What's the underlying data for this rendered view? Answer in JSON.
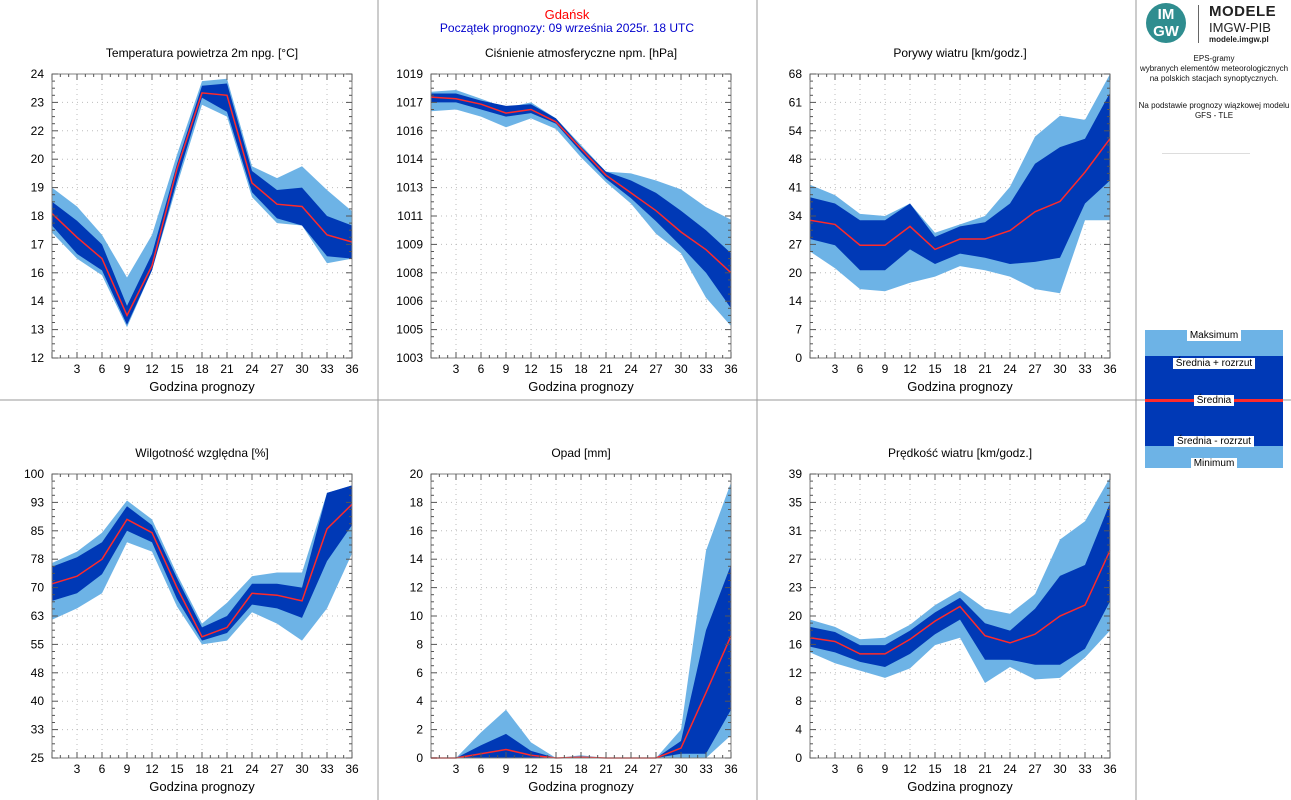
{
  "header": {
    "station": "Gdańsk",
    "forecast_start": "Początek prognozy: 09 września 2025r. 18 UTC"
  },
  "branding": {
    "logo_top": "IM",
    "logo_bottom": "GW",
    "title": "MODELE",
    "subtitle": "IMGW-PIB",
    "url": "modele.imgw.pl"
  },
  "description": {
    "lines": [
      "EPS-gramy",
      "wybranych elementów meteorologicznych",
      "na polskich stacjach  synoptycznych."
    ],
    "basis_lines": [
      "Na podstawie prognozy wiązkowej modelu",
      "GFS - TLE"
    ]
  },
  "legend": {
    "max": "Maksimum",
    "mean_plus": "Średnia + rozrzut",
    "mean": "Średnia",
    "mean_minus": "Średnia - rozrzut",
    "min": "Minimum"
  },
  "colors": {
    "band_outer": "#6db3e6",
    "band_inner": "#0039b6",
    "mean_line": "#ff2a2a",
    "station_title": "#ff0000",
    "forecast_title": "#0000cc",
    "grid": "#bdbdbd"
  },
  "chart_data": [
    {
      "type": "area",
      "title": "Temperatura powietrza 2m npg. [°C]",
      "xlabel": "Godzina prognozy",
      "x": [
        0,
        3,
        6,
        9,
        12,
        15,
        18,
        21,
        24,
        27,
        30,
        33,
        36
      ],
      "xticks": [
        "3",
        "6",
        "9",
        "12",
        "15",
        "18",
        "21",
        "24",
        "27",
        "30",
        "33",
        "36"
      ],
      "yticks": [
        "12",
        "13",
        "14",
        "16",
        "17",
        "18",
        "19",
        "20",
        "22",
        "23",
        "24"
      ],
      "ylim": [
        12,
        24
      ],
      "max": [
        19.2,
        18.4,
        17.2,
        15.4,
        17.2,
        20.6,
        23.7,
        23.8,
        20.1,
        19.6,
        20.1,
        19.1,
        18.2
      ],
      "mean_plus": [
        18.6,
        17.8,
        16.8,
        14.2,
        16.4,
        20.2,
        23.5,
        23.6,
        19.9,
        19.1,
        19.2,
        18.0,
        17.6
      ],
      "mean": [
        18.1,
        17.1,
        16.2,
        13.8,
        15.9,
        20.0,
        23.2,
        23.1,
        19.4,
        18.5,
        18.4,
        17.2,
        16.9
      ],
      "mean_minus": [
        17.6,
        16.4,
        15.7,
        13.4,
        15.7,
        19.5,
        23.0,
        22.4,
        19.0,
        17.9,
        17.6,
        16.3,
        16.2
      ],
      "min": [
        17.3,
        16.2,
        15.5,
        13.3,
        15.7,
        19.3,
        22.7,
        22.2,
        18.8,
        17.7,
        17.6,
        16.0,
        16.2
      ]
    },
    {
      "type": "area",
      "title": "Ciśnienie atmosferyczne npm. [hPa]",
      "xlabel": "Godzina prognozy",
      "x": [
        0,
        3,
        6,
        9,
        12,
        15,
        18,
        21,
        24,
        27,
        30,
        33,
        36
      ],
      "xticks": [
        "3",
        "6",
        "9",
        "12",
        "15",
        "18",
        "21",
        "24",
        "27",
        "30",
        "33",
        "36"
      ],
      "yticks": [
        "1003",
        "1005",
        "1006",
        "1008",
        "1009",
        "1011",
        "1013",
        "1014",
        "1016",
        "1017",
        "1019"
      ],
      "ylim": [
        1003,
        1019
      ],
      "max": [
        1018.0,
        1018.1,
        1017.6,
        1017.1,
        1017.4,
        1016.5,
        1015.0,
        1013.5,
        1013.4,
        1013.0,
        1012.5,
        1011.5,
        1010.8
      ],
      "mean_plus": [
        1017.9,
        1017.9,
        1017.5,
        1017.2,
        1017.3,
        1016.5,
        1014.9,
        1013.5,
        1013.0,
        1012.3,
        1011.3,
        1010.2,
        1008.9
      ],
      "mean": [
        1017.7,
        1017.6,
        1017.3,
        1016.8,
        1017.0,
        1016.3,
        1014.8,
        1013.3,
        1012.3,
        1011.3,
        1010.1,
        1009.1,
        1007.8
      ],
      "mean_minus": [
        1017.4,
        1017.4,
        1017.0,
        1016.6,
        1016.8,
        1016.2,
        1014.6,
        1013.1,
        1012.0,
        1010.7,
        1009.3,
        1007.8,
        1005.8
      ],
      "min": [
        1016.9,
        1017.0,
        1016.6,
        1016.0,
        1016.5,
        1015.9,
        1014.3,
        1012.9,
        1011.7,
        1010.0,
        1008.9,
        1006.4,
        1004.8
      ]
    },
    {
      "type": "area",
      "title": "Porywy wiatru [km/godz.]",
      "xlabel": "Godzina prognozy",
      "x": [
        0,
        3,
        6,
        9,
        12,
        15,
        18,
        21,
        24,
        27,
        30,
        33,
        36
      ],
      "xticks": [
        "3",
        "6",
        "9",
        "12",
        "15",
        "18",
        "21",
        "24",
        "27",
        "30",
        "33",
        "36"
      ],
      "yticks": [
        "0",
        "7",
        "14",
        "20",
        "27",
        "34",
        "41",
        "48",
        "54",
        "61",
        "68"
      ],
      "ylim": [
        0,
        68
      ],
      "max": [
        41.5,
        39.0,
        34.5,
        34.0,
        37.0,
        30.0,
        32.0,
        34.0,
        41.0,
        53.0,
        58.0,
        57.0,
        68.0
      ],
      "mean_plus": [
        38.5,
        37.0,
        33.0,
        33.0,
        37.0,
        29.0,
        31.5,
        32.5,
        37.0,
        46.5,
        50.5,
        52.5,
        63.5
      ],
      "mean": [
        33.0,
        32.0,
        27.0,
        27.0,
        31.5,
        26.0,
        28.5,
        28.5,
        30.5,
        35.0,
        37.5,
        44.5,
        52.5
      ],
      "mean_minus": [
        28.5,
        27.0,
        21.0,
        21.0,
        26.0,
        22.5,
        25.0,
        24.0,
        22.5,
        23.0,
        24.0,
        37.0,
        42.5
      ],
      "min": [
        25.5,
        21.5,
        16.5,
        16.0,
        18.0,
        19.5,
        22.0,
        21.0,
        19.5,
        16.5,
        15.5,
        33.0,
        33.0
      ]
    },
    {
      "type": "area",
      "title": "Wilgotność względna [%]",
      "xlabel": "Godzina prognozy",
      "x": [
        0,
        3,
        6,
        9,
        12,
        15,
        18,
        21,
        24,
        27,
        30,
        33,
        36
      ],
      "xticks": [
        "3",
        "6",
        "9",
        "12",
        "15",
        "18",
        "21",
        "24",
        "27",
        "30",
        "33",
        "36"
      ],
      "yticks": [
        "25",
        "33",
        "40",
        "48",
        "55",
        "63",
        "70",
        "78",
        "85",
        "93",
        "100"
      ],
      "ylim": [
        25,
        100
      ],
      "max": [
        76.5,
        79.5,
        84.5,
        93.0,
        88.0,
        73.5,
        60.5,
        66.0,
        73.0,
        74.0,
        74.0,
        95.0,
        97.0
      ],
      "mean_plus": [
        75.5,
        78.0,
        82.0,
        91.5,
        86.5,
        72.5,
        59.5,
        62.5,
        71.0,
        71.0,
        70.0,
        95.0,
        97.0
      ],
      "mean": [
        71.0,
        73.0,
        77.5,
        88.0,
        84.5,
        70.0,
        57.0,
        59.5,
        68.5,
        68.0,
        66.5,
        85.5,
        92.0
      ],
      "mean_minus": [
        66.5,
        68.5,
        73.5,
        85.0,
        82.0,
        67.0,
        56.0,
        58.0,
        65.5,
        64.5,
        62.0,
        77.0,
        86.5
      ],
      "min": [
        61.5,
        64.5,
        68.5,
        82.0,
        79.5,
        65.0,
        55.0,
        56.0,
        63.5,
        60.5,
        56.0,
        64.5,
        79.0
      ]
    },
    {
      "type": "area",
      "title": "Opad [mm]",
      "xlabel": "Godzina prognozy",
      "x": [
        0,
        3,
        6,
        9,
        12,
        15,
        18,
        21,
        24,
        27,
        30,
        33,
        36
      ],
      "xticks": [
        "3",
        "6",
        "9",
        "12",
        "15",
        "18",
        "21",
        "24",
        "27",
        "30",
        "33",
        "36"
      ],
      "yticks": [
        "0",
        "2",
        "4",
        "6",
        "8",
        "10",
        "12",
        "14",
        "16",
        "18",
        "20"
      ],
      "ylim": [
        0,
        20
      ],
      "max": [
        0,
        0,
        1.8,
        3.4,
        1.1,
        0,
        0.2,
        0,
        0,
        0,
        2.0,
        14.6,
        19.4
      ],
      "mean_plus": [
        0,
        0,
        0.9,
        1.7,
        0.5,
        0,
        0.1,
        0,
        0,
        0,
        1.2,
        9.0,
        13.6
      ],
      "mean": [
        0,
        0,
        0.3,
        0.6,
        0.2,
        0,
        0.05,
        0,
        0,
        0,
        0.7,
        4.6,
        8.6
      ],
      "mean_minus": [
        0,
        0,
        0,
        0,
        0,
        0,
        0,
        0,
        0,
        0,
        0.3,
        0.3,
        3.4
      ],
      "min": [
        0,
        0,
        0,
        0,
        0,
        0,
        0,
        0,
        0,
        0,
        0,
        0,
        1.6
      ]
    },
    {
      "type": "area",
      "title": "Prędkość wiatru [km/godz.]",
      "xlabel": "Godzina prognozy",
      "x": [
        0,
        3,
        6,
        9,
        12,
        15,
        18,
        21,
        24,
        27,
        30,
        33,
        36
      ],
      "xticks": [
        "3",
        "6",
        "9",
        "12",
        "15",
        "18",
        "21",
        "24",
        "27",
        "30",
        "33",
        "36"
      ],
      "yticks": [
        "0",
        "4",
        "8",
        "12",
        "16",
        "20",
        "23",
        "27",
        "31",
        "35",
        "39"
      ],
      "ylim": [
        0,
        39
      ],
      "max": [
        19.0,
        18.0,
        16.3,
        16.5,
        18.3,
        21.0,
        23.0,
        20.5,
        19.8,
        22.5,
        30.0,
        32.5,
        38.5
      ],
      "mean_plus": [
        18.0,
        17.3,
        15.5,
        15.5,
        17.5,
        20.0,
        22.0,
        18.5,
        17.5,
        20.5,
        25.0,
        26.5,
        35.0
      ],
      "mean": [
        16.5,
        16.0,
        14.3,
        14.3,
        16.3,
        18.8,
        20.8,
        16.8,
        15.8,
        17.0,
        19.5,
        21.0,
        28.5
      ],
      "mean_minus": [
        15.3,
        14.5,
        13.2,
        12.5,
        14.3,
        17.0,
        19.0,
        13.5,
        13.5,
        12.8,
        12.8,
        15.0,
        21.5
      ],
      "min": [
        14.5,
        13.0,
        12.0,
        11.0,
        12.3,
        15.5,
        16.5,
        10.3,
        12.5,
        10.8,
        11.0,
        13.8,
        17.5
      ]
    }
  ]
}
